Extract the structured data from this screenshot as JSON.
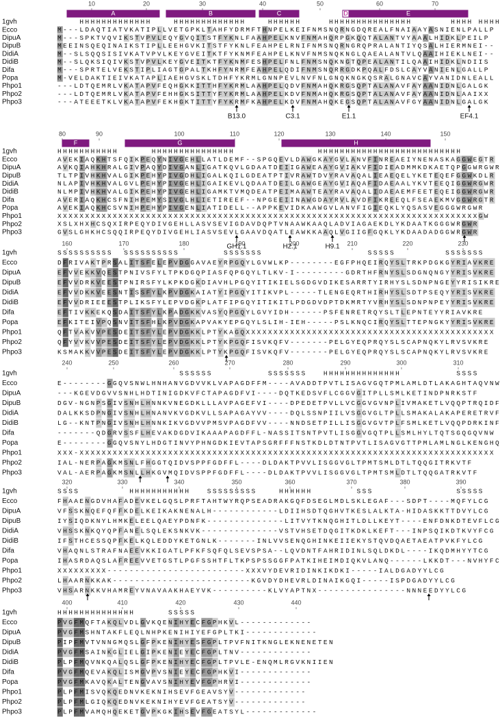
{
  "structure_label": "1gvh",
  "names": [
    "Ecco",
    "DipuA",
    "DipuB",
    "DidiA",
    "DidiB",
    "Difa",
    "Popa",
    "Phpo1",
    "Phpo2",
    "Phpo3"
  ],
  "blocks": [
    {
      "ruler": [
        10,
        20,
        30,
        40,
        50,
        60,
        70
      ],
      "elements": [
        "A",
        "B",
        "C",
        "D",
        "E"
      ],
      "ss": "    HHHHHHHHHHHHH    HHHHHHHHHHHHH    HHHHHH     HHHHHHHHHHHHHHH       HHHH HHHH",
      "rows": [
        "M---LDAQTIATVKATIPLLVETGPKLTAHFYDRMFTHNPELKEIFNMSNQRNGDQREALFNAIAAYASNIENLPALLP",
        "M---SPKTVQVIKSTVPVLEQYGVQITSTFYKNLFAAHPELKNVFNMAHQRPGKQQTALANTVYAAALHIDKLPEILP",
        "MEEINSQEQINAIKSTIPLLEEHGVKITSTFYKNLFEAHPELRNIFNMSNQRNGRQPRALANTIYQSALHIERMNEI--",
        "M--SLSQQSISIVKATVPVLKEYGVEITKTFYKNMFEAHPELKNVFNMSNQKNGLQAEALANTVLQAAIHIEKLNEI--",
        "M--SLQKSIQIVKSTVPVLKEYGVEITKTFYKNMFESHPELFNLFNMSNQKNGTQPEALANTILQAAIHIDKLNDIIS",
        "M---SPRTELVEKSTIPLIAGTGPALTKHFYNRMFEAHPELQDIFNMSNQRRGDKPQALFDSLCAYVANIENLGALLP",
        "M-VELDAKTIEIVKATAPLIAEHGVSKLTDHFYKRMLGNNPEVLNVFNLGNQKNGKQSRALGNAVCAYVANIDNLEALL",
        "---LDTQEMRLVKATAPVFEQHGKKITTHFYKRMLAAHPELQDVFNMAHQKRGSQPTALANAVFAYAANIDNLGALGK",
        "---LDTQEMRLVKATAPVFEHHGKSITTYFYKRMLAAHPELKDVFNMAHQKRGSQPTALANAVFAYAANIDNLAAIXX",
        "---ATEEETKLVKATAPVFEKHGKTITTYFYKRMFKAHPELKDVFNMAHQKEGSQPTALANAVFGYAANIDNLGALGK"
      ],
      "annotations": [
        "B13.0",
        "C3.1",
        "E1.1",
        "EF4.1"
      ]
    },
    {
      "ruler": [
        80,
        90,
        100,
        110,
        120,
        130,
        140,
        150
      ],
      "elements": [
        "F",
        "G",
        "H"
      ],
      "ss": "HHHHHHHHHHH      HHHHHHHHHHHHHHH               HHHHHHHHHHHHHHHHHHHHHHHHHH         S",
      "rows": [
        "AVEKIAQKHTSFQIKPEQYNIVGEHLLATLDEMF--SPGQEVLDAWGKAYGVLANVFINREAEIYNENASKAGGWEGTR",
        "AVKQIAHKHRALGIVPAQYDIVGANLIGATKQVLGDAATDEIIGAWEAAYGVIAKVFIDIEADMMKDKAETQPGGWRGWR",
        "TLTPIVHKHVALGIKPEHYPIVGDHLIGALKQILGDEATPTIVRAWTDVYRAVAQALIEAEQELYKETEQEFGGWKDLR",
        "NLAPIVHKHVALGVLPEHYPIVGEHLIGAIKEVLQDAATDEILGAWGEAYGVIAQAFIDAEAALYKVTEEQIGGWRGWR",
        "NLMPIVHKHVALGIKPEHYPIVGEHLIGAMKTVMQDEATPEIMAAWTEAYRAVAQALIDAEAEMFEETEQEIGGWRGWR",
        "AVERIAQKHCSFNIHPEMYSIVGLHLIETIREEF--NPGEEIINAWGDAYRVLAVDFIKREEQLFSEAEKMVGGWRGTR",
        "AVEKIAQKHCSVNIHPEHYPIVGENLIATIDELL--APPKEVIDKAAWGVLANVFIGIEQKLYQSASVEGGGWRGWR",
        "XXXXXXXXXXXXXXXXXXXXXXXXXXXXXXXXXXXXXXXXXXXXXXXXXXXXXXXXXXXXXXXXXXXXXXXXXXXXGW",
        "XSLXHXHCSQXIRPEQYDIVGEHLLASVSEVIGDAVDQPTVNAAWKAAQLADVIAGAEKDLYKDAATKGGGWRGWR",
        "GVSLGHKHCSQQIRPEQYDIVGEHLIASVSEVLGAAVDQATLEAWKKAAQLVGIIGFGQKLYKDAADADGGWRGWR"
      ],
      "annotations": [
        "GH1.1",
        "H2.1",
        "H9.1"
      ]
    },
    {
      "ruler": [
        160,
        170,
        180,
        190,
        200,
        210,
        220,
        230
      ],
      "elements": [],
      "ss": "SSSSSSSSSS  SSSSSSSSSS        SSSSSSS                   SSSSS         SSSSSSS",
      "rows": [
        "DFRIVAKTPRSALITSFELEPVDGGAVAEYRPGQYLGVWLKP--------EGFPHQEIRQYSLTRKPDGKGYRIAVKRE",
        "EFVVEKKVQESTPNIVSFYLTPKDGQPIASFQPGQYLTLKV-I---------GDRTHFRNYSLSDGNQNGYYRISVKRE",
        "EFVVDRKVEESTPNIRSFYLKPKDGKDIAVHLPGQYITIKIELSGDGVDIKESARRTYIRHYSLSDNPNGEYYRISIKRE",
        "EFVVDKKVEESNTISSFYLKPVDGKAIATYIPGQYITIKVPL-----TLENGEQRTHIRHYSLSDTPSEQYYRISVKRE",
        "EFVVDRIEEESTPLIKSFYLEPVDGKPLATFIPGQYITIKITLPDGDVDPTDKMRTYVRHYSLSDNPNPEYYRISVKRE",
        "EFTIVKKEKQSDAITSFYLKPADGKKVASYQPGQYLGVYIDH------PSFENRETRQYSLTLEPNTEYYRIAVKRE",
        "EFKITEIVPQSNVITSFHLKPVDGKAPVAKYEPGQYLSLIH-IEH-----PSLKNQCIRQYSLTTEPNGKYYRISVKRE",
        "QFTVAKVVPESDEITSFYLEPVDGKKLPTYKAGQXXXXXXXXXXXXXXXXXXXXXXXXXXXXXXXXXXXXXXXXXXXXX",
        "QFYVVKVVPESDEITSFYLEPVDGKKLPTYKPGQFISVKQFV-------PELGYEQPRQYSLSCAPNQKYLRVSVKRE",
        "KSMAKKVVPESDEITSFYLEPVDGKKLPTYKPGQFISVKQFV-------PELGYEQPRQYSLSCAPNQKYLRVSVKRE"
      ],
      "annotations": []
    },
    {
      "ruler": [
        240,
        250,
        260,
        270,
        280,
        290,
        300,
        310
      ],
      "elements": [],
      "ss": "                      SSSSSS          SSSSSSS   HHHHHHHHHHHHHH          SSSS",
      "rows": [
        "E--------GGQVSNWLHNHANVGDVVKLVAPAGDFFM----AVADDTPVTLISAGVGQTPMLAMLDTLAKAGHTAQVNW",
        "---KGEVDGVVSNHLHDTINIGDKVFCTAPAGDFVI----DQTKEDSVFLCGGVGITPLLSMLKETINDPNRKSTF",
        "DGV-NGNPSGIVSNHLHNNKVNEGDKLLLAVPAGEFVI----DPEDETPVLLVCGGVGVNPLIVMAKETLVQQPTRQIDF",
        "DALKKSDPNGIVSNHLHNANVKVGDKVLLSAPAGAYVV----DQLSSNPIILVSGGVGLTPLLSMAKALAKAPERETRVF",
        "LG--KNTPNGIVSNHLHNNKIKVGDVVPMSVPAGDFVV----NNDSETPILLISGGVGVTPLFSMLKETLVQQPDRKINF",
        "-------QDGRVSSFLHEVAKDGDVIKAAAPAGDFFL-NASSITSNTPVTLISGGVGQTPLLSMLHYLTQTSGQGQVNW",
        "E--------GGQVSNYLHDGTINVYPHNGDKIEVTAPSGRFFFNSTKDLDTNTPVTLISAGVGTTPMLAMLNGLKENGHQ",
        "XXX-XXXXXXXXXXXXXXXXXXXXXXXXXXXXXXXXXXXXXXXXXXXXXXXXXXXXXXXXXXXXXXXXXXXXXXXXXXX",
        "IAL-NERPAGKMSNLFHGGTQIDVSPPFGDFFL----DLDAKTPVVLISGGVGLTPMTSMLDTLTQQGITRKVTF",
        "VAL-AERPAGKMSNLLHKGVMQIDVSPPFGDFFL----DLDAKTPVVLISGGVGLTPMTSMLDTLTQQGATRKVTF"
      ],
      "annotations": []
    },
    {
      "ruler": [
        320,
        330,
        340,
        350,
        360,
        370,
        380,
        390
      ],
      "elements": [],
      "ss": "SSSS         HHHHHHHHHHH   SSSSSSSSS    HHHHHH        SSS               SSSSS",
      "rows": [
        "FHAAENGDVHAFADEVKELGQSLPRFTAHTWYRQPSEADRAKGQFDSEGLMDLSKLEGAF---SDPT----MQFYLCG",
        "VFSSKNQEFQFFKDELKEIKAKNENALH------------LDIIHSDTQGHVTKESLALKTA-HIDASKKTTDVYLCG",
        "IYSIQDKNYLHMKELEELQAEYPDNFK--------------LITVYTKNQGHITLDLLKEYT----ENFDNKDTEVFLCG",
        "VHSSKNKQYQPFANELSQLEKSNKVK--------------VSTVHSETDQGITKDKLKEFT---INPSQIKDTKVYFCG",
        "IFSTHCESSQPFKELKQLEDDYKETGNLK-------INLVVSENQGHINKEIIEKYSTQVDQAETAEATPVKFYLCG",
        "VHAQNLSTRAFNAEEVKKIGATLPFKFSQFQLSEVSPSA--LQVDNTFAHRIDINLSQLDKDL----IKQDMHYYTCG",
        "IHASRDAQSLAFREEVVETGSTLPGFSSHTFLTKPSPSSGGFPATKIHEIMDIQKVLANQ------LKKDT---NVHYFCG",
        "XXXXXXXXX-------------------------XXXVYDEVRIDINKIKDKI-----IALDGADYYLCG",
        "LHAARNKKAK-------------------------KGVDYDHEVRLDINAIKGQI-----ISPDGADYYLCG",
        "VHSARNKKVHAMREYVNAVAAKHAEYVK----------KLVYAPTNX----------------NNNEEDYYLCG"
      ],
      "annotations": []
    },
    {
      "ruler": [
        400,
        410,
        420,
        430,
        440
      ],
      "elements": [],
      "ss": "HHHHHHHHHHHHHH      SSSSS",
      "rows": [
        "PVGFMQFTAKQLVDLGVKQENIHYECFGPHKVL-------------",
        "PVGFMSHNTAKFLEQLNHPKENIHIYEFGPLTKI-------------",
        "PIPFMVTVNNGMQSLGFPKENIHYESFGPLTPVFNITKNGLEKNENETEN",
        "PVGFMSAINKGLIELGIPKENIEYECFGPLTNV-------------",
        "PLPFMQVNKQALQSLGFPKENIHYECFGPLTPVLE-ENQMLRGVKNIIEN",
        "PVGFMQEVAKQLISMGVPVSNIEYECFGPHKVI-------------",
        "PVGFMKAVQKALTENGVAVSNIHYEVFGPHRVI-------------",
        "PLPFMISVQKQEDNVKEKNIHSEVFGEAVSYV-------------",
        "PLPFMLGIQKQEDNVKEKNIHYEVFGEATSYV-------------",
        "PLPFMVAMQHQEKETGVPKGKIHSEVFGEATSYL-------------"
      ],
      "annotations": []
    }
  ]
}
